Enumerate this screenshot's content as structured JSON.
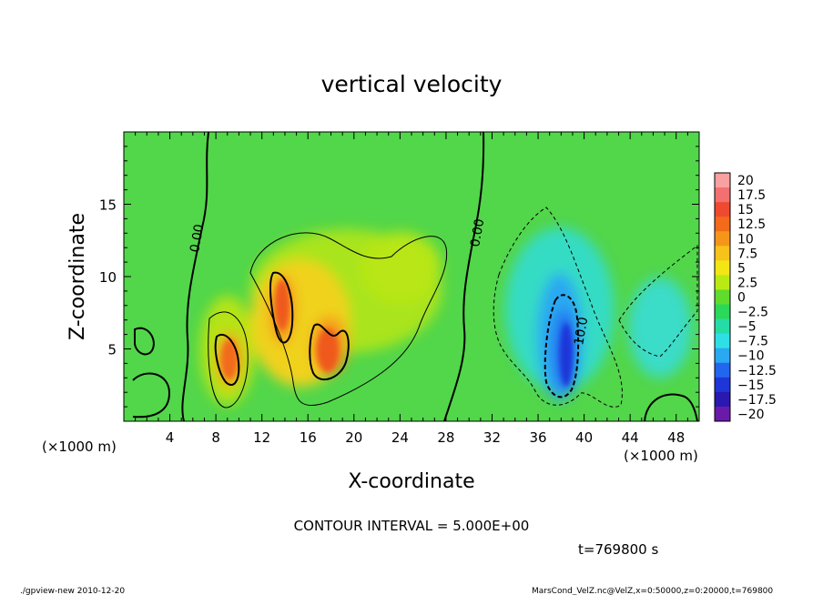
{
  "chart_data": {
    "type": "heatmap",
    "title": "vertical velocity",
    "xlabel": "X-coordinate",
    "ylabel": "Z-coordinate",
    "x_unit_left": "(×1000 m)",
    "x_unit_right": "(×1000 m)",
    "xlim": [
      0,
      50
    ],
    "ylim": [
      0,
      20
    ],
    "x_ticks": [
      4,
      8,
      12,
      16,
      20,
      24,
      28,
      32,
      36,
      40,
      44,
      48
    ],
    "y_ticks": [
      5,
      10,
      15
    ],
    "colorbar": {
      "levels": [
        20,
        17.5,
        15,
        12.5,
        10,
        7.5,
        5,
        2.5,
        0,
        -2.5,
        -5,
        -7.5,
        -10,
        -12.5,
        -15,
        -17.5,
        -20
      ],
      "labels": [
        "20",
        "17.5",
        "15",
        "12.5",
        "10",
        "7.5",
        "5",
        "2.5",
        "0",
        "−2.5",
        "−5",
        "−7.5",
        "−10",
        "−12.5",
        "−15",
        "−17.5",
        "−20"
      ],
      "colors": [
        "#f9a0a0",
        "#f37070",
        "#ef4a30",
        "#f26a1a",
        "#f5961a",
        "#f7c21a",
        "#f2e614",
        "#b9ea14",
        "#5fdc2c",
        "#2ad85a",
        "#26dca6",
        "#2ee0e6",
        "#2aa8f2",
        "#2266f0",
        "#1e36d8",
        "#2a18b0",
        "#6a1aa8"
      ]
    },
    "contour_labels": [
      "0.00",
      "0.00",
      "10.0"
    ],
    "contour_interval_text": "CONTOUR INTERVAL = 5.000E+00",
    "time_text": "t=769800 s",
    "grid": false,
    "legend": "colorbar right",
    "features": [
      {
        "label": "updraft",
        "x": 9.4,
        "z": 4.3,
        "w": 14
      },
      {
        "label": "updraft",
        "x": 14.2,
        "z": 7.6,
        "w": 15
      },
      {
        "label": "updraft",
        "x": 17.8,
        "z": 5.2,
        "w": 14
      },
      {
        "label": "broad updraft",
        "x": 22,
        "z": 8.5,
        "w": 6
      },
      {
        "label": "downdraft",
        "x": 38,
        "z": 5.5,
        "w": -13
      },
      {
        "label": "downdraft",
        "x": 46.5,
        "z": 6,
        "w": -7
      }
    ]
  },
  "footer": {
    "left": "./gpview-new  2010-12-20",
    "right": "MarsCond_VelZ.nc@VelZ,x=0:50000,z=0:20000,t=769800"
  }
}
